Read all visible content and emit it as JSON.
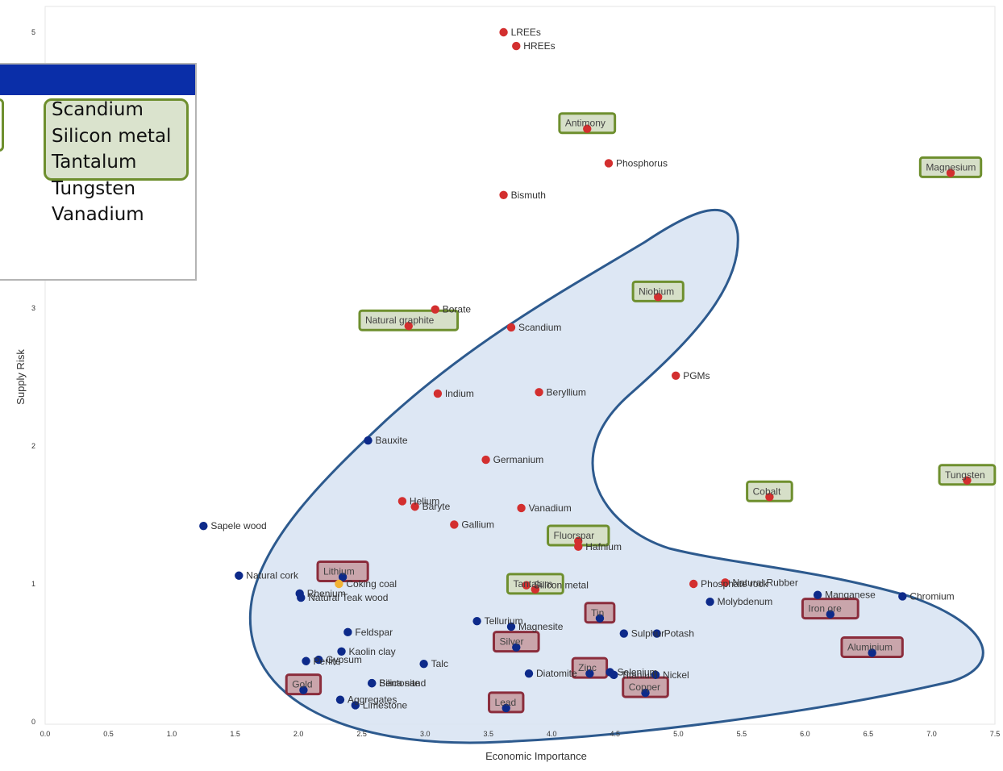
{
  "colors": {
    "critical": "#d32f2f",
    "noncritical": "#0d2a8a",
    "coking": "#f2b233",
    "region_fill": "#d7e3f2",
    "region_stroke": "#2d5a8e",
    "green_box": "#6e8f2e",
    "green_fill": "#d6dfc8",
    "red_box": "#8b2d3c",
    "red_fill": "#c9a5ab",
    "panel_header": "#0a2ea8"
  },
  "legend_panel": {
    "items": [
      "Scandium",
      "Silicon metal",
      "Tantalum",
      "Tungsten",
      "Vanadium"
    ],
    "highlighted_count": 3
  },
  "chart_data": {
    "type": "scatter",
    "title": "",
    "xlabel": "Economic Importance",
    "ylabel": "Supply Risk",
    "xlim": [
      0,
      7.5
    ],
    "ylim": [
      0,
      5
    ],
    "x_ticks": [
      "0.0",
      "0.5",
      "1.0",
      "1.5",
      "2.0",
      "2.5",
      "3.0",
      "3.5",
      "4.0",
      "4.5",
      "5.0",
      "5.5",
      "6.0",
      "6.5",
      "7.0",
      "7.5"
    ],
    "y_ticks": [
      "0",
      "1",
      "2",
      "3",
      "5"
    ],
    "series": [
      {
        "category": "critical",
        "points": [
          {
            "name": "LREEs",
            "x": 3.62,
            "y": 5.0
          },
          {
            "name": "HREEs",
            "x": 3.72,
            "y": 4.9
          },
          {
            "name": "Antimony",
            "x": 4.28,
            "y": 4.3,
            "box": "green"
          },
          {
            "name": "Phosphorus",
            "x": 4.45,
            "y": 4.05
          },
          {
            "name": "Magnesium",
            "x": 7.15,
            "y": 3.98,
            "box": "green"
          },
          {
            "name": "Bismuth",
            "x": 3.62,
            "y": 3.82
          },
          {
            "name": "Niobium",
            "x": 4.84,
            "y": 3.08,
            "box": "green"
          },
          {
            "name": "Borate",
            "x": 3.08,
            "y": 2.99
          },
          {
            "name": "Scandium",
            "x": 3.68,
            "y": 2.86
          },
          {
            "name": "Natural graphite",
            "x": 2.87,
            "y": 2.87,
            "box": "green"
          },
          {
            "name": "PGMs",
            "x": 4.98,
            "y": 2.51
          },
          {
            "name": "Indium",
            "x": 3.1,
            "y": 2.38
          },
          {
            "name": "Beryllium",
            "x": 3.9,
            "y": 2.39
          },
          {
            "name": "Germanium",
            "x": 3.48,
            "y": 1.9
          },
          {
            "name": "Tungsten",
            "x": 7.28,
            "y": 1.75,
            "box": "green"
          },
          {
            "name": "Cobalt",
            "x": 5.72,
            "y": 1.63,
            "box": "green"
          },
          {
            "name": "Helium",
            "x": 2.82,
            "y": 1.6
          },
          {
            "name": "Baryte",
            "x": 2.92,
            "y": 1.56
          },
          {
            "name": "Vanadium",
            "x": 3.76,
            "y": 1.55
          },
          {
            "name": "Gallium",
            "x": 3.23,
            "y": 1.43
          },
          {
            "name": "Fluorspar",
            "x": 4.21,
            "y": 1.31,
            "box": "green"
          },
          {
            "name": "Hafnium",
            "x": 4.21,
            "y": 1.27
          },
          {
            "name": "Silicon metal",
            "x": 3.8,
            "y": 0.99
          },
          {
            "name": "Tantalum",
            "x": 3.87,
            "y": 0.96,
            "box": "green"
          },
          {
            "name": "Phosphate rock",
            "x": 5.12,
            "y": 1.0
          },
          {
            "name": "Natural Rubber",
            "x": 5.37,
            "y": 1.01
          }
        ]
      },
      {
        "category": "noncritical",
        "points": [
          {
            "name": "Bauxite",
            "x": 2.55,
            "y": 2.04
          },
          {
            "name": "Sapele wood",
            "x": 1.25,
            "y": 1.42
          },
          {
            "name": "Natural cork",
            "x": 1.53,
            "y": 1.06
          },
          {
            "name": "Lithium",
            "x": 2.35,
            "y": 1.05,
            "box": "red"
          },
          {
            "name": "Rhenium",
            "x": 2.01,
            "y": 0.93
          },
          {
            "name": "Natural Teak wood",
            "x": 2.02,
            "y": 0.9
          },
          {
            "name": "Feldspar",
            "x": 2.39,
            "y": 0.65
          },
          {
            "name": "Kaolin clay",
            "x": 2.34,
            "y": 0.51
          },
          {
            "name": "Perlite",
            "x": 2.06,
            "y": 0.44
          },
          {
            "name": "Gypsum",
            "x": 2.16,
            "y": 0.45
          },
          {
            "name": "Talc",
            "x": 2.99,
            "y": 0.42
          },
          {
            "name": "Bentonite",
            "x": 2.58,
            "y": 0.28
          },
          {
            "name": "Silica sand",
            "x": 2.58,
            "y": 0.28
          },
          {
            "name": "Gold",
            "x": 2.04,
            "y": 0.23,
            "box": "red"
          },
          {
            "name": "Aggregates",
            "x": 2.33,
            "y": 0.16
          },
          {
            "name": "Limestone",
            "x": 2.45,
            "y": 0.12
          },
          {
            "name": "Tellurium",
            "x": 3.41,
            "y": 0.73
          },
          {
            "name": "Magnesite",
            "x": 3.68,
            "y": 0.69
          },
          {
            "name": "Silver",
            "x": 3.72,
            "y": 0.54,
            "box": "red"
          },
          {
            "name": "Diatomite",
            "x": 3.82,
            "y": 0.35
          },
          {
            "name": "Lead",
            "x": 3.64,
            "y": 0.1,
            "box": "red"
          },
          {
            "name": "Tin",
            "x": 4.38,
            "y": 0.75,
            "box": "red"
          },
          {
            "name": "Sulphur",
            "x": 4.57,
            "y": 0.64
          },
          {
            "name": "Potash",
            "x": 4.83,
            "y": 0.64
          },
          {
            "name": "Zinc",
            "x": 4.3,
            "y": 0.35,
            "box": "red"
          },
          {
            "name": "Selenium",
            "x": 4.46,
            "y": 0.36
          },
          {
            "name": "Nickel",
            "x": 4.82,
            "y": 0.34
          },
          {
            "name": "Titanium",
            "x": 4.49,
            "y": 0.34
          },
          {
            "name": "Copper",
            "x": 4.74,
            "y": 0.21,
            "box": "red"
          },
          {
            "name": "Molybdenum",
            "x": 5.25,
            "y": 0.87
          },
          {
            "name": "Manganese",
            "x": 6.1,
            "y": 0.92
          },
          {
            "name": "Chromium",
            "x": 6.77,
            "y": 0.91
          },
          {
            "name": "Iron ore",
            "x": 6.2,
            "y": 0.78,
            "box": "red"
          },
          {
            "name": "Aluminium",
            "x": 6.53,
            "y": 0.5,
            "box": "red"
          }
        ]
      },
      {
        "category": "coking",
        "points": [
          {
            "name": "Coking coal",
            "x": 2.32,
            "y": 1.0
          }
        ]
      }
    ],
    "region": "Boomerang-shaped highlighted area enclosing most points",
    "grid": false,
    "legend": "overlay panel at top-left"
  }
}
